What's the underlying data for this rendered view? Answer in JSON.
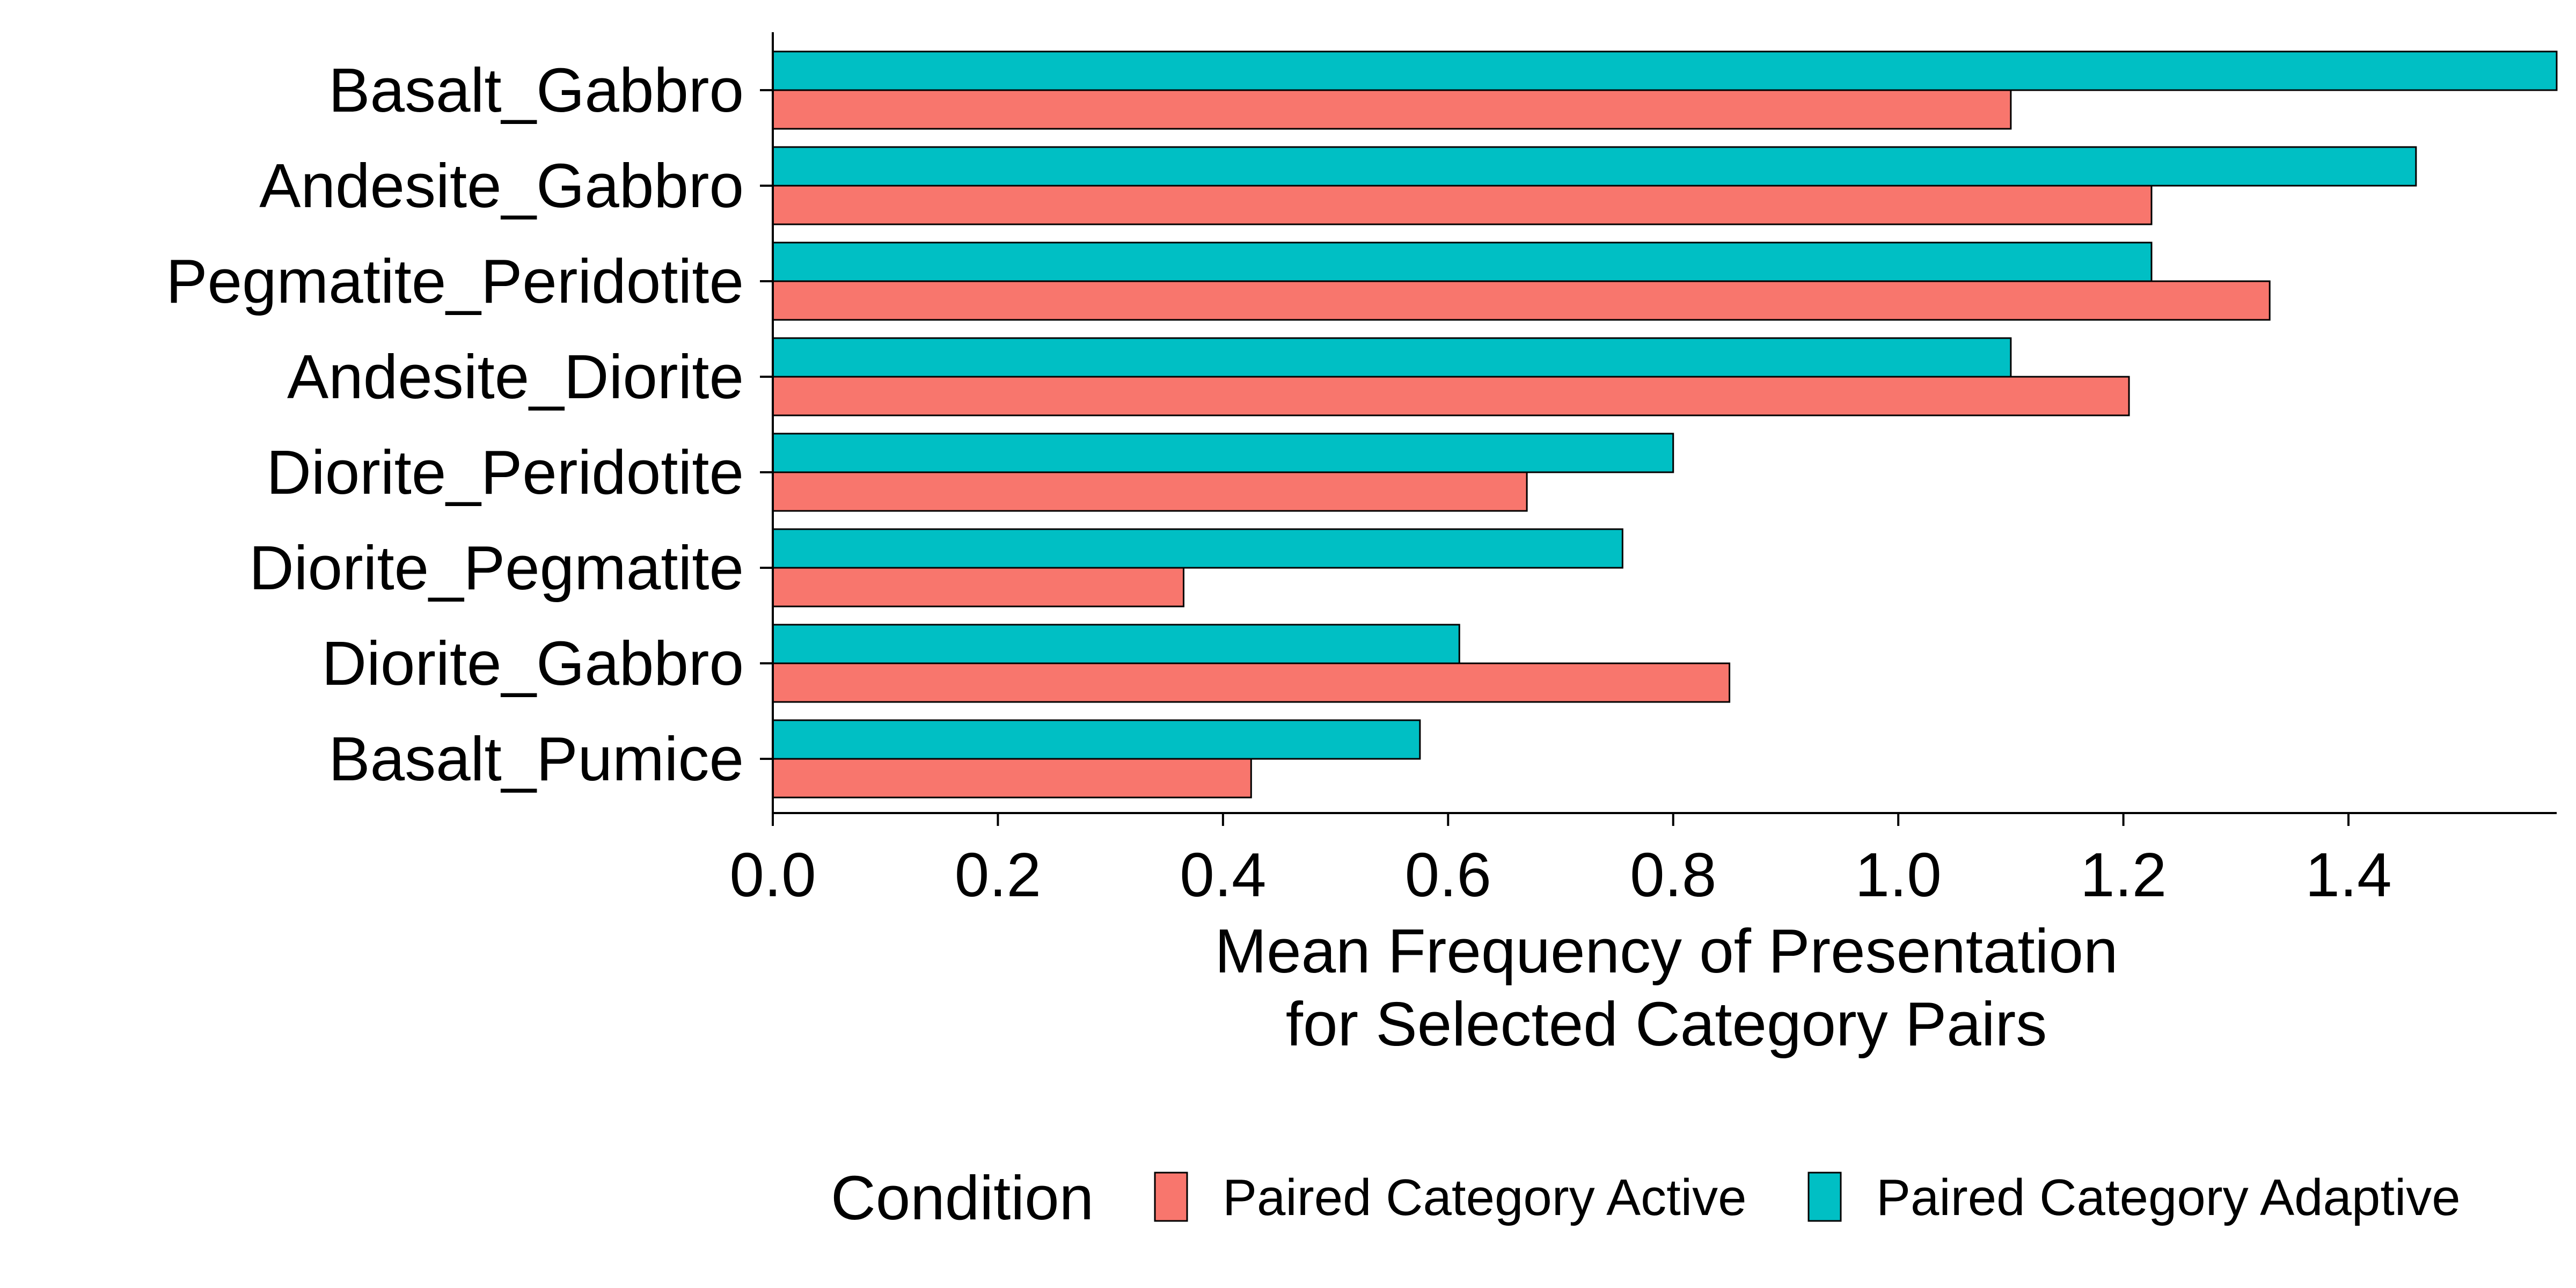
{
  "chart_data": {
    "type": "bar",
    "orientation": "horizontal",
    "categories": [
      "Basalt_Gabbro",
      "Andesite_Gabbro",
      "Pegmatite_Peridotite",
      "Andesite_Diorite",
      "Diorite_Peridotite",
      "Diorite_Pegmatite",
      "Diorite_Gabbro",
      "Basalt_Pumice"
    ],
    "series": [
      {
        "name": "Paired Category Active",
        "color": "#F8766D",
        "values": [
          1.1,
          1.225,
          1.33,
          1.205,
          0.67,
          0.365,
          0.85,
          0.425
        ]
      },
      {
        "name": "Paired Category Adaptive",
        "color": "#00BFC4",
        "values": [
          1.585,
          1.46,
          1.225,
          1.1,
          0.8,
          0.755,
          0.61,
          0.575
        ]
      }
    ],
    "xlabel_lines": [
      "Mean Frequency of Presentation",
      "for Selected Category Pairs"
    ],
    "ylabel": "",
    "xlim": [
      0,
      1.585
    ],
    "xticks": [
      0.0,
      0.2,
      0.4,
      0.6,
      0.8,
      1.0,
      1.2,
      1.4
    ],
    "tick_labels": [
      "0.0",
      "0.2",
      "0.4",
      "0.6",
      "0.8",
      "1.0",
      "1.2",
      "1.4"
    ],
    "grid": false,
    "legend": {
      "title": "Condition",
      "position": "bottom"
    }
  }
}
